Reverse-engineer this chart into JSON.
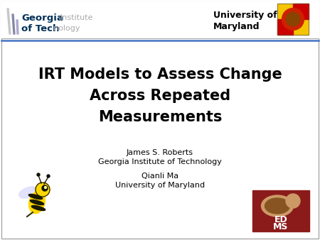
{
  "background_color": "#ffffff",
  "title_line1": "IRT Models to Assess Change",
  "title_line2": "Across Repeated",
  "title_line3": "Measurements",
  "author1_name": "James S. Roberts",
  "author1_affil": "Georgia Institute of Technology",
  "author2_name": "Qianli Ma",
  "author2_affil": "University of Maryland",
  "header_right_line1": "University of",
  "header_right_line2": "Maryland",
  "title_fontsize": 15,
  "author_fontsize": 8,
  "header_text_fontsize": 8,
  "gt_georgia_color": "#003057",
  "gt_institute_color": "#aaaaaa",
  "gt_bar1_color": "#C0C0C0",
  "gt_bar2_color": "#003057",
  "divider_color1": "#aaaaaa",
  "divider_color2": "#4472c4",
  "md_flag_yellow": "#F5C400",
  "md_flag_red": "#CC0000",
  "edms_bg_color": "#8B1A1A",
  "bee_body_color": "#FFD700",
  "bee_stripe_color": "#1a1a00"
}
